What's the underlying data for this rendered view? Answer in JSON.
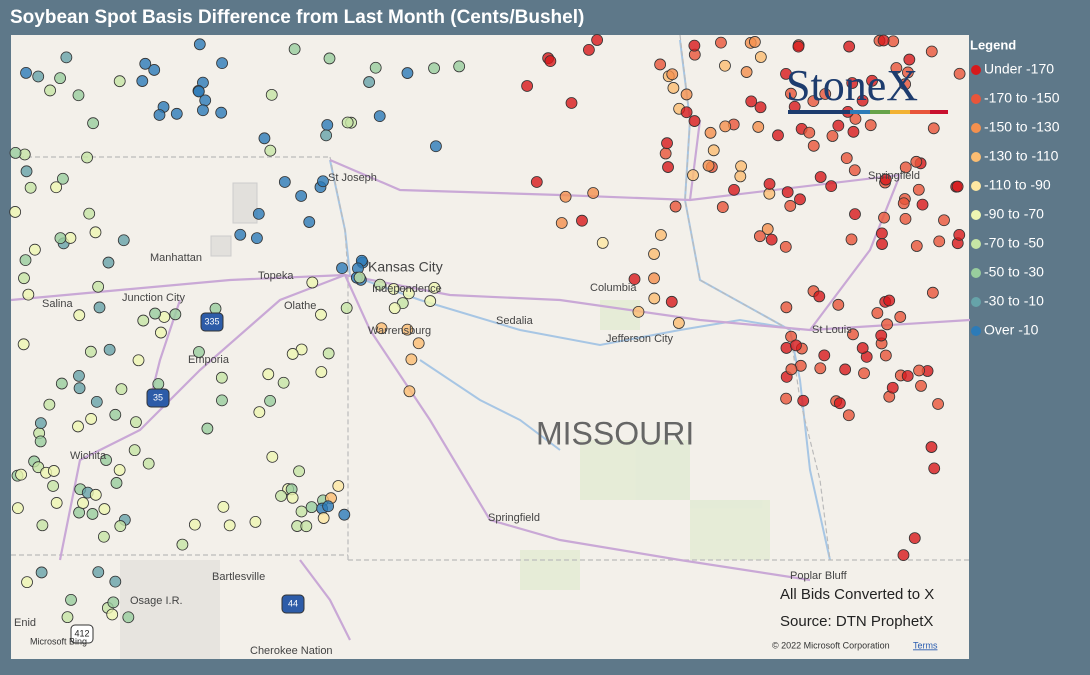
{
  "title": "Soybean Spot Basis Difference from Last Month (Cents/Bushel)",
  "legend": {
    "title": "Legend",
    "items": [
      {
        "label": "Under -170",
        "color": "#d7191c"
      },
      {
        "label": "-170 to -150",
        "color": "#e8553a"
      },
      {
        "label": "-150 to -130",
        "color": "#f4904e"
      },
      {
        "label": "-130 to -110",
        "color": "#fbbd72"
      },
      {
        "label": "-110 to -90",
        "color": "#fde7a2"
      },
      {
        "label": "-90 to -70",
        "color": "#eef6b2"
      },
      {
        "label": "-70 to -50",
        "color": "#c6e5a5"
      },
      {
        "label": "-50 to -30",
        "color": "#99cd9d"
      },
      {
        "label": "-30 to -10",
        "color": "#66a3a9"
      },
      {
        "label": "Over -10",
        "color": "#2c7bb8"
      }
    ]
  },
  "map": {
    "state_label": "MISSOURI",
    "places": [
      "St Joseph",
      "Manhattan",
      "Topeka",
      "Kansas City",
      "Independence",
      "Junction City",
      "Salina",
      "Olathe",
      "Warrensburg",
      "Sedalia",
      "Columbia",
      "Jefferson City",
      "St Louis",
      "Springfield",
      "Emporia",
      "Wichita",
      "Springfield",
      "Bartlesville",
      "Osage I.R.",
      "Poplar Bluff",
      "Enid",
      "Cherokee Nation"
    ],
    "highways": [
      "335",
      "35",
      "44",
      "412"
    ]
  },
  "logo": "StoneX",
  "notes": [
    "All Bids Converted to X",
    "Source: DTN ProphetX"
  ],
  "attribution": {
    "bing": "Microsoft Bing",
    "copyright": "© 2022 Microsoft Corporation",
    "terms": "Terms"
  }
}
